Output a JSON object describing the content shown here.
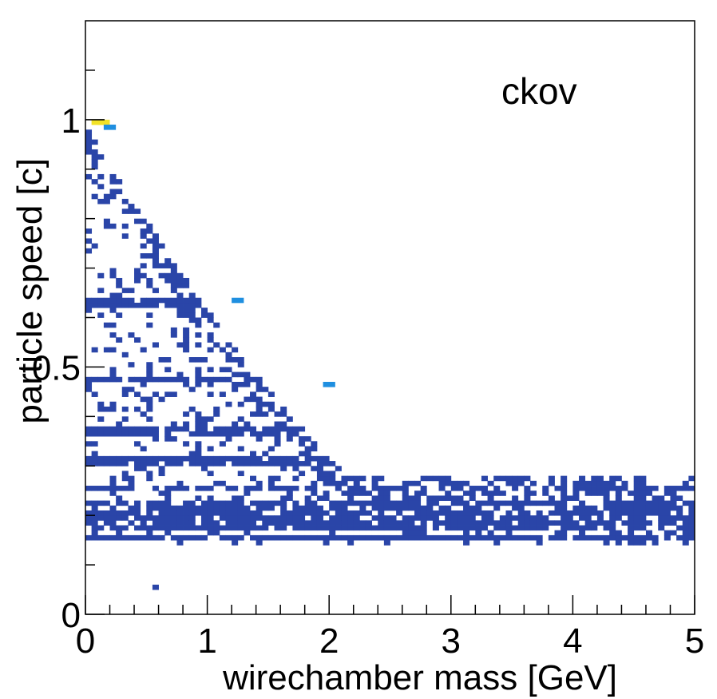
{
  "chart_data": {
    "type": "heatmap",
    "title": "",
    "annotation": "ckov",
    "xlabel": "wirechamber mass [GeV]",
    "ylabel": "particle speed [c]",
    "xlim": [
      0,
      5
    ],
    "ylim": [
      0,
      1.2
    ],
    "x_ticks": [
      "0",
      "1",
      "2",
      "3",
      "4",
      "5"
    ],
    "y_ticks": [
      "0",
      "0.5",
      "1"
    ],
    "grid": false,
    "legend": "none",
    "colors": {
      "low": "#2a45a8",
      "mid": "#1f8fe0",
      "high": "#f2e227",
      "frame": "#000000"
    },
    "bands": [
      {
        "y": 0.63,
        "x_max": 1.5,
        "density": 0.95
      },
      {
        "y": 0.475,
        "x_max": 2.3,
        "density": 0.85
      },
      {
        "y": 0.37,
        "x_max": 2.9,
        "density": 0.9
      },
      {
        "y": 0.31,
        "x_max": 3.8,
        "density": 0.85
      },
      {
        "y": 0.255,
        "x_max": 4.7,
        "density": 0.75
      },
      {
        "y": 0.22,
        "x_max": 5.0,
        "density": 0.8
      },
      {
        "y": 0.2,
        "x_max": 5.0,
        "density": 0.85
      },
      {
        "y": 0.18,
        "x_max": 5.0,
        "density": 0.85
      },
      {
        "y": 0.155,
        "x_max": 5.0,
        "density": 0.9
      }
    ],
    "hot_bins": [
      {
        "x": 0.05,
        "y": 0.99,
        "level": "high"
      },
      {
        "x": 0.14,
        "y": 0.99,
        "level": "high"
      },
      {
        "x": 0.18,
        "y": 0.985,
        "level": "mid"
      },
      {
        "x": 1.22,
        "y": 0.635,
        "level": "mid"
      },
      {
        "x": 1.95,
        "y": 0.465,
        "level": "mid"
      }
    ],
    "isolated_bins": [
      {
        "x": 0.57,
        "y": 0.05
      }
    ]
  }
}
